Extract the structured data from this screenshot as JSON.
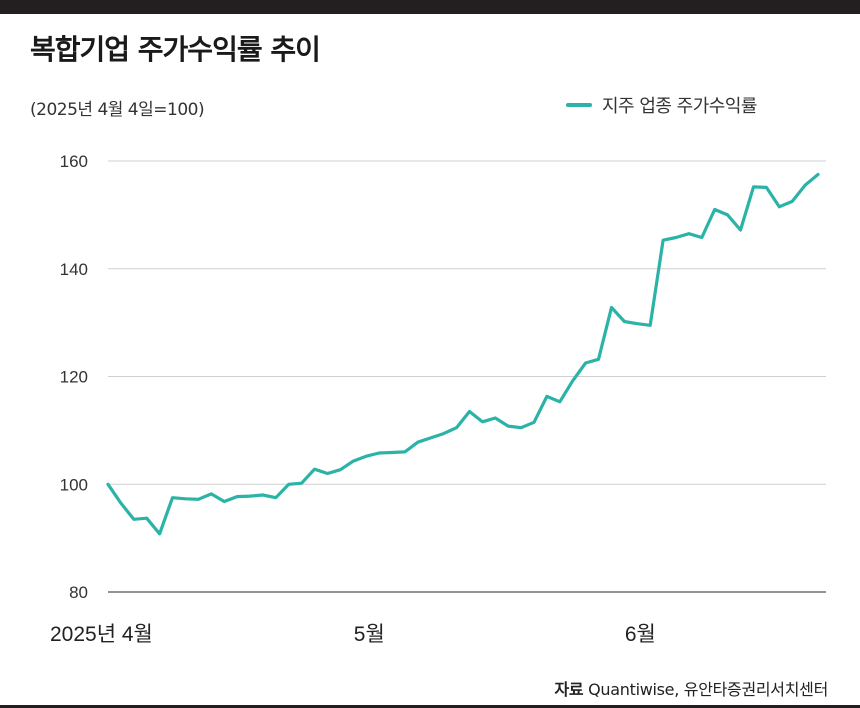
{
  "title": "복합기업 주가수익률 추이",
  "subtitle": "(2025년 4월 4일=100)",
  "legend": {
    "label": "지주 업종 주가수익률",
    "color": "#2ab3a6"
  },
  "source": {
    "label": "자료",
    "text": "Quantiwise, 유안타증권리서치센터"
  },
  "chart_data": {
    "type": "line",
    "title": "복합기업 주가수익률 추이",
    "subtitle": "(2025년 4월 4일=100)",
    "xlabel": "",
    "ylabel": "",
    "ylim": [
      80,
      160
    ],
    "yticks": [
      80,
      100,
      120,
      140,
      160
    ],
    "grid": "horizontal",
    "legend_position": "top-right",
    "x_tick_labels": [
      {
        "label": "2025년 4월",
        "index": 0
      },
      {
        "label": "5월",
        "index": 19
      },
      {
        "label": "6월",
        "index": 40
      }
    ],
    "series": [
      {
        "name": "지주 업종 주가수익률",
        "color": "#2ab3a6",
        "values": [
          100,
          96.5,
          93.5,
          93.7,
          90.8,
          97.5,
          97.3,
          97.2,
          98.2,
          96.8,
          97.7,
          97.8,
          98.0,
          97.5,
          100.0,
          100.2,
          102.8,
          102.0,
          102.7,
          104.3,
          105.2,
          105.8,
          105.9,
          106.0,
          107.8,
          108.6,
          109.4,
          110.5,
          113.5,
          111.6,
          112.3,
          110.8,
          110.5,
          111.5,
          116.3,
          115.3,
          119.2,
          122.5,
          123.2,
          132.8,
          130.2,
          129.8,
          129.5,
          145.3,
          145.8,
          146.5,
          145.8,
          151.0,
          150.0,
          147.2,
          155.2,
          155.1,
          151.5,
          152.5,
          155.5,
          157.5
        ]
      }
    ]
  }
}
